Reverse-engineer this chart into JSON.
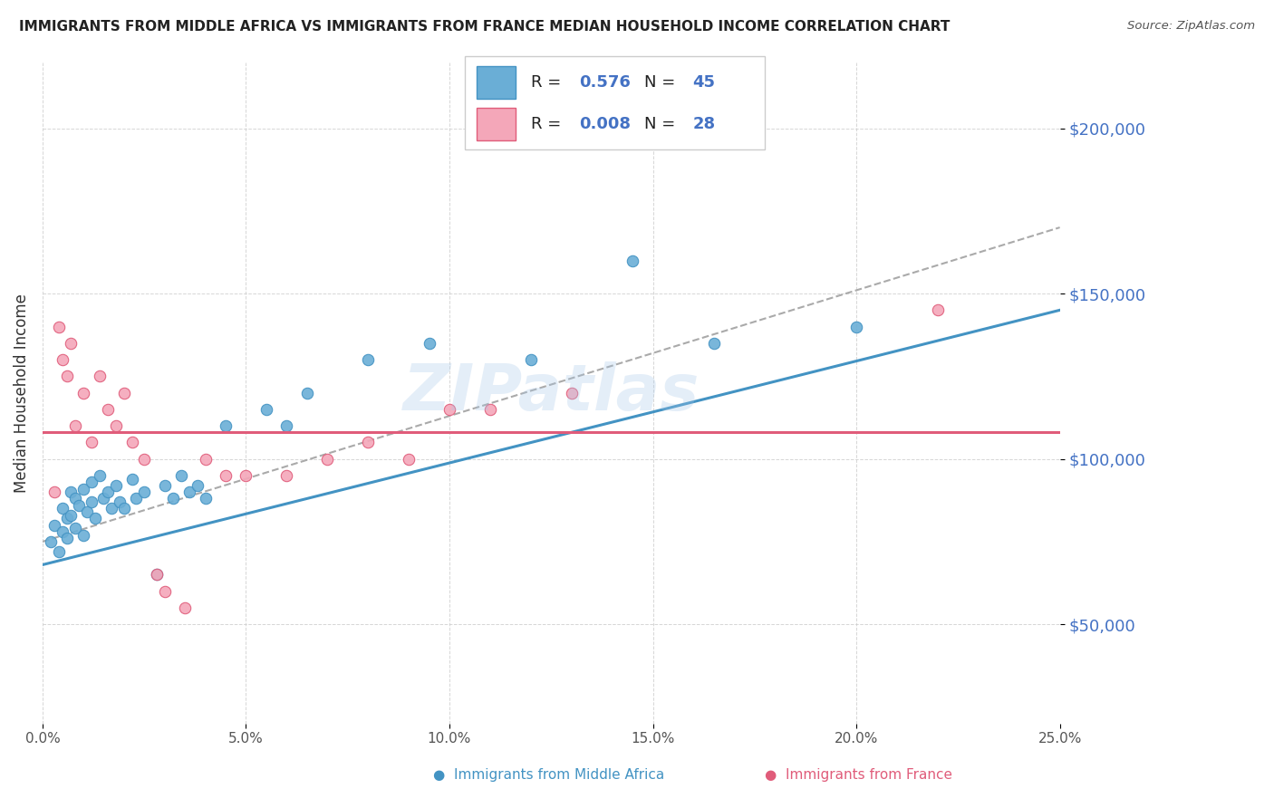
{
  "title": "IMMIGRANTS FROM MIDDLE AFRICA VS IMMIGRANTS FROM FRANCE MEDIAN HOUSEHOLD INCOME CORRELATION CHART",
  "source": "Source: ZipAtlas.com",
  "ylabel": "Median Household Income",
  "xlim": [
    0.0,
    0.25
  ],
  "ylim": [
    20000,
    220000
  ],
  "yticks": [
    50000,
    100000,
    150000,
    200000
  ],
  "ytick_labels": [
    "$50,000",
    "$100,000",
    "$150,000",
    "$200,000"
  ],
  "xticks": [
    0.0,
    0.05,
    0.1,
    0.15,
    0.2,
    0.25
  ],
  "xtick_labels": [
    "0.0%",
    "5.0%",
    "10.0%",
    "15.0%",
    "20.0%",
    "25.0%"
  ],
  "legend_labels": [
    "Immigrants from Middle Africa",
    "Immigrants from France"
  ],
  "legend_R": [
    "0.576",
    "0.008"
  ],
  "legend_N": [
    "45",
    "28"
  ],
  "blue_color": "#6aaed6",
  "pink_color": "#f4a7b9",
  "blue_edge_color": "#4393c3",
  "pink_edge_color": "#e05c7a",
  "dashed_line_color": "#aaaaaa",
  "blue_scatter_x": [
    0.002,
    0.003,
    0.004,
    0.005,
    0.005,
    0.006,
    0.006,
    0.007,
    0.007,
    0.008,
    0.008,
    0.009,
    0.01,
    0.01,
    0.011,
    0.012,
    0.012,
    0.013,
    0.014,
    0.015,
    0.016,
    0.017,
    0.018,
    0.019,
    0.02,
    0.022,
    0.023,
    0.025,
    0.028,
    0.03,
    0.032,
    0.034,
    0.036,
    0.038,
    0.04,
    0.045,
    0.055,
    0.06,
    0.065,
    0.08,
    0.095,
    0.12,
    0.145,
    0.165,
    0.2
  ],
  "blue_scatter_y": [
    75000,
    80000,
    72000,
    85000,
    78000,
    82000,
    76000,
    90000,
    83000,
    88000,
    79000,
    86000,
    91000,
    77000,
    84000,
    93000,
    87000,
    82000,
    95000,
    88000,
    90000,
    85000,
    92000,
    87000,
    85000,
    94000,
    88000,
    90000,
    65000,
    92000,
    88000,
    95000,
    90000,
    92000,
    88000,
    110000,
    115000,
    110000,
    120000,
    130000,
    135000,
    130000,
    160000,
    135000,
    140000
  ],
  "pink_scatter_x": [
    0.003,
    0.004,
    0.005,
    0.006,
    0.007,
    0.008,
    0.01,
    0.012,
    0.014,
    0.016,
    0.018,
    0.02,
    0.022,
    0.025,
    0.028,
    0.03,
    0.035,
    0.04,
    0.045,
    0.05,
    0.06,
    0.07,
    0.08,
    0.09,
    0.1,
    0.11,
    0.13,
    0.22
  ],
  "pink_scatter_y": [
    90000,
    140000,
    130000,
    125000,
    135000,
    110000,
    120000,
    105000,
    125000,
    115000,
    110000,
    120000,
    105000,
    100000,
    65000,
    60000,
    55000,
    100000,
    95000,
    95000,
    95000,
    100000,
    105000,
    100000,
    115000,
    115000,
    120000,
    145000
  ],
  "blue_trend_x": [
    0.0,
    0.25
  ],
  "blue_trend_y": [
    68000,
    145000
  ],
  "pink_trend_x": [
    0.0,
    0.25
  ],
  "pink_trend_y": [
    108000,
    108000
  ],
  "dashed_trend_x": [
    0.0,
    0.25
  ],
  "dashed_trend_y": [
    75000,
    170000
  ],
  "watermark": "ZIPatlas",
  "background_color": "#ffffff",
  "grid_color": "#cccccc"
}
